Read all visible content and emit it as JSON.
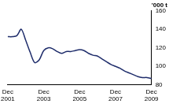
{
  "chart_data": {
    "type": "line",
    "y_label": "'000 t",
    "categories": [
      "Dec 2001",
      null,
      null,
      null,
      null,
      null,
      null,
      null,
      "Dec 2003",
      null,
      null,
      null,
      null,
      null,
      null,
      null,
      "Dec 2005",
      null,
      null,
      null,
      null,
      null,
      null,
      null,
      "Dec 2007",
      null,
      null,
      null,
      null,
      null,
      null,
      null,
      "Dec 2009"
    ],
    "values": [
      132,
      132,
      133,
      140,
      128,
      115,
      104,
      107,
      117,
      120,
      119,
      116,
      114,
      116,
      116,
      117,
      118,
      117,
      114,
      112,
      111,
      108,
      105,
      102,
      100,
      98,
      95,
      93,
      91,
      89,
      88,
      88,
      87
    ],
    "color": "#1f2d6b",
    "ylim": [
      80,
      160
    ],
    "yticks": [
      80,
      100,
      120,
      140,
      160
    ],
    "grid": false
  }
}
